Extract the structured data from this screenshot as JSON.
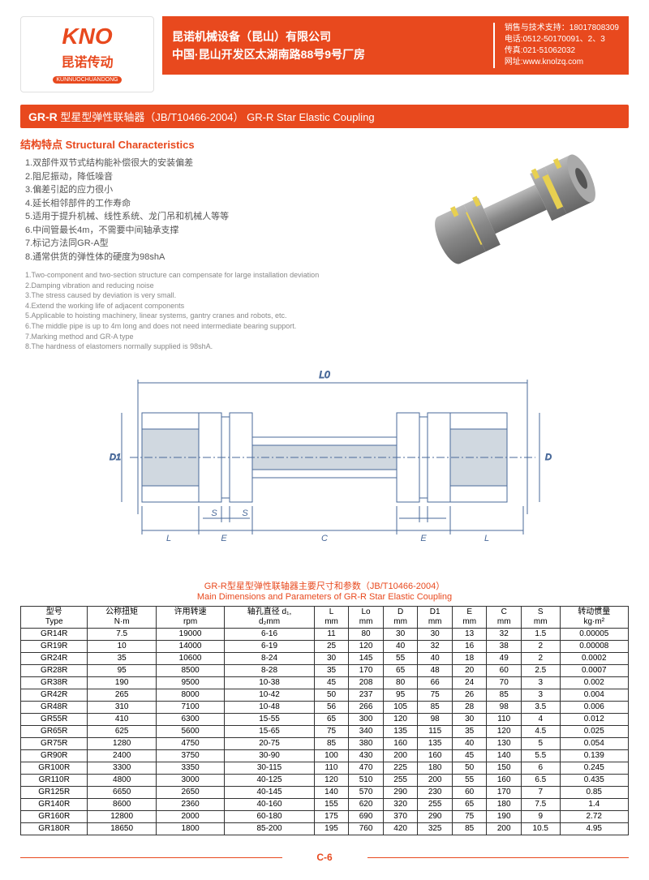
{
  "logo": {
    "main": "KNO",
    "sub": "昆诺传动",
    "pinyin": "KUNNUOCHUANDONG"
  },
  "company": {
    "name_cn": "昆诺机械设备（昆山）有限公司",
    "addr_cn": "中国·昆山开发区太湖南路88号9号厂房"
  },
  "contact": {
    "l1": "销售与技术支持：18017808309",
    "l2": "电话:0512-50170091、2、3",
    "l3": "传真:021-51062032",
    "l4": "网址:www.knolzq.com"
  },
  "titlebar": {
    "pre": "GR-R",
    "cn": "型星型弹性联轴器（JB/T10466-2004）",
    "en": "GR-R Star Elastic Coupling"
  },
  "section_heading": "结构特点 Structural Characteristics",
  "chars_cn": [
    "1.双部件双节式结构能补偿很大的安装偏差",
    "2.阻尼振动，降低噪音",
    "3.偏差引起的应力很小",
    "4.延长相邻部件的工作寿命",
    "5.适用于提升机械、线性系统、龙门吊和机械人等等",
    "6.中间管最长4m，不需要中间轴承支撑",
    "7.标记方法同GR-A型",
    "8.通常供货的弹性体的硬度为98shA"
  ],
  "chars_en": [
    "1.Two-component and two-section structure can compensate for large installation deviation",
    "2.Damping vibration and reducing noise",
    "3.The stress caused by deviation is very small.",
    "4.Extend the working life of adjacent components",
    "5.Applicable to hoisting machinery, linear systems, gantry cranes and robots, etc.",
    "6.The middle pipe is up to 4m long and does not need intermediate bearing support.",
    "7.Marking method and GR-A type",
    "8.The hardness of elastomers normally supplied is 98shA."
  ],
  "diagram_labels": {
    "L0": "L0",
    "D1": "D1",
    "D": "D",
    "S1": "S",
    "S2": "S",
    "L1": "L",
    "L2": "L",
    "E1": "E",
    "E2": "E",
    "C": "C"
  },
  "table_title": {
    "cn": "GR-R型星型弹性联轴器主要尺寸和参数（JB/T10466-2004）",
    "en": "Main Dimensions and Parameters of GR-R Star Elastic Coupling"
  },
  "columns": [
    {
      "cn": "型号",
      "en": "Type"
    },
    {
      "cn": "公称扭矩",
      "en": "N·m"
    },
    {
      "cn": "许用转速",
      "en": "rpm"
    },
    {
      "cn": "轴孔直径 d₁,",
      "en": "d₂mm"
    },
    {
      "cn": "L",
      "en": "mm"
    },
    {
      "cn": "Lo",
      "en": "mm"
    },
    {
      "cn": "D",
      "en": "mm"
    },
    {
      "cn": "D1",
      "en": "mm"
    },
    {
      "cn": "E",
      "en": "mm"
    },
    {
      "cn": "C",
      "en": "mm"
    },
    {
      "cn": "S",
      "en": "mm"
    },
    {
      "cn": "转动惯量",
      "en": "kg·m²"
    }
  ],
  "rows": [
    [
      "GR14R",
      "7.5",
      "19000",
      "6-16",
      "11",
      "80",
      "30",
      "30",
      "13",
      "32",
      "1.5",
      "0.00005"
    ],
    [
      "GR19R",
      "10",
      "14000",
      "6-19",
      "25",
      "120",
      "40",
      "32",
      "16",
      "38",
      "2",
      "0.00008"
    ],
    [
      "GR24R",
      "35",
      "10600",
      "8-24",
      "30",
      "145",
      "55",
      "40",
      "18",
      "49",
      "2",
      "0.0002"
    ],
    [
      "GR28R",
      "95",
      "8500",
      "8-28",
      "35",
      "170",
      "65",
      "48",
      "20",
      "60",
      "2.5",
      "0.0007"
    ],
    [
      "GR38R",
      "190",
      "9500",
      "10-38",
      "45",
      "208",
      "80",
      "66",
      "24",
      "70",
      "3",
      "0.002"
    ],
    [
      "GR42R",
      "265",
      "8000",
      "10-42",
      "50",
      "237",
      "95",
      "75",
      "26",
      "85",
      "3",
      "0.004"
    ],
    [
      "GR48R",
      "310",
      "7100",
      "10-48",
      "56",
      "266",
      "105",
      "85",
      "28",
      "98",
      "3.5",
      "0.006"
    ],
    [
      "GR55R",
      "410",
      "6300",
      "15-55",
      "65",
      "300",
      "120",
      "98",
      "30",
      "110",
      "4",
      "0.012"
    ],
    [
      "GR65R",
      "625",
      "5600",
      "15-65",
      "75",
      "340",
      "135",
      "115",
      "35",
      "120",
      "4.5",
      "0.025"
    ],
    [
      "GR75R",
      "1280",
      "4750",
      "20-75",
      "85",
      "380",
      "160",
      "135",
      "40",
      "130",
      "5",
      "0.054"
    ],
    [
      "GR90R",
      "2400",
      "3750",
      "30-90",
      "100",
      "430",
      "200",
      "160",
      "45",
      "140",
      "5.5",
      "0.139"
    ],
    [
      "GR100R",
      "3300",
      "3350",
      "30-115",
      "110",
      "470",
      "225",
      "180",
      "50",
      "150",
      "6",
      "0.245"
    ],
    [
      "GR110R",
      "4800",
      "3000",
      "40-125",
      "120",
      "510",
      "255",
      "200",
      "55",
      "160",
      "6.5",
      "0.435"
    ],
    [
      "GR125R",
      "6650",
      "2650",
      "40-145",
      "140",
      "570",
      "290",
      "230",
      "60",
      "170",
      "7",
      "0.85"
    ],
    [
      "GR140R",
      "8600",
      "2360",
      "40-160",
      "155",
      "620",
      "320",
      "255",
      "65",
      "180",
      "7.5",
      "1.4"
    ],
    [
      "GR160R",
      "12800",
      "2000",
      "60-180",
      "175",
      "690",
      "370",
      "290",
      "75",
      "190",
      "9",
      "2.72"
    ],
    [
      "GR180R",
      "18650",
      "1800",
      "85-200",
      "195",
      "760",
      "420",
      "325",
      "85",
      "200",
      "10.5",
      "4.95"
    ]
  ],
  "footer": "C-6",
  "colors": {
    "accent": "#e8491e",
    "gray_body": "#999999",
    "elastomer": "#e8d050",
    "diagram_line": "#4a6a9a",
    "diagram_hatch": "#a0b0c0"
  }
}
